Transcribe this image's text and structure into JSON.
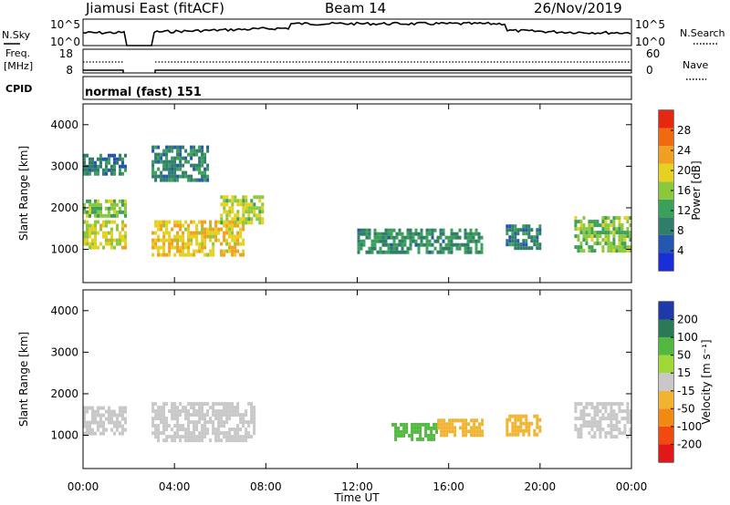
{
  "header": {
    "radar_title": "Jiamusi East (fitACF)",
    "beam": "Beam 14",
    "date": "26/Nov/2019"
  },
  "panels": {
    "nsky_label": "N.Sky",
    "nsky_ticks": [
      "10^5",
      "10^0"
    ],
    "nsearch_label": "N.Search",
    "nsearch_ticks": [
      "10^5",
      "10^0"
    ],
    "freq_label": "Freq.",
    "freq_unit": "[MHz]",
    "freq_ticks": [
      "18",
      "8"
    ],
    "nave_label": "Nave",
    "nave_ticks": [
      "60",
      "0"
    ],
    "cpid_label": "CPID",
    "cpid_value": "normal (fast) 151"
  },
  "colors": {
    "power": [
      "#1a2ed8",
      "#2557b0",
      "#2f7d6a",
      "#3aa05a",
      "#8cc83c",
      "#e6d020",
      "#f0a020",
      "#f06a10",
      "#e52810"
    ],
    "velocity": [
      "#e01818",
      "#f04a10",
      "#f08a10",
      "#f0b430",
      "#c8c8c8",
      "#9fd838",
      "#52b840",
      "#2a7a58",
      "#1e3aa8"
    ]
  },
  "chart_data": [
    {
      "type": "heatmap",
      "name": "power",
      "ylabel": "Slant Range [km]",
      "ylim": [
        200,
        4500
      ],
      "yticks": [
        "4000",
        "3000",
        "2000",
        "1000"
      ],
      "xlim_hours": [
        0,
        24
      ],
      "xticks": [
        "00:00",
        "04:00",
        "08:00",
        "12:00",
        "16:00",
        "20:00",
        "00:00"
      ],
      "colorbar_label": "Power [dB]",
      "colorbar_ticks": [
        "28",
        "24",
        "20",
        "16",
        "12",
        "8",
        "4"
      ],
      "colorbar_range": [
        0,
        30
      ],
      "regions": [
        {
          "t": [
            0.0,
            1.8
          ],
          "r": [
            1000,
            1700
          ],
          "v": 18
        },
        {
          "t": [
            0.0,
            1.8
          ],
          "r": [
            1800,
            2200
          ],
          "v": 14
        },
        {
          "t": [
            0.0,
            1.8
          ],
          "r": [
            2800,
            3300
          ],
          "v": 8
        },
        {
          "t": [
            3.0,
            7.0
          ],
          "r": [
            900,
            1700
          ],
          "v": 20
        },
        {
          "t": [
            3.0,
            5.5
          ],
          "r": [
            2700,
            3500
          ],
          "v": 8
        },
        {
          "t": [
            6.0,
            7.8
          ],
          "r": [
            1600,
            2300
          ],
          "v": 16
        },
        {
          "t": [
            12.0,
            17.5
          ],
          "r": [
            900,
            1500
          ],
          "v": 9
        },
        {
          "t": [
            18.5,
            20.0
          ],
          "r": [
            1000,
            1600
          ],
          "v": 8
        },
        {
          "t": [
            21.5,
            24.0
          ],
          "r": [
            1000,
            1800
          ],
          "v": 14
        }
      ]
    },
    {
      "type": "heatmap",
      "name": "velocity",
      "ylabel": "Slant Range [km]",
      "ylim": [
        200,
        4500
      ],
      "yticks": [
        "4000",
        "3000",
        "2000",
        "1000"
      ],
      "xlim_hours": [
        0,
        24
      ],
      "xticks": [
        "00:00",
        "04:00",
        "08:00",
        "12:00",
        "16:00",
        "20:00",
        "00:00"
      ],
      "xlabel": "Time UT",
      "colorbar_label": "Velocity [m s⁻¹]",
      "colorbar_ticks": [
        "200",
        "100",
        "50",
        "15",
        "-15",
        "-50",
        "-100",
        "-200"
      ],
      "regions": [
        {
          "t": [
            0.0,
            1.8
          ],
          "r": [
            1000,
            1700
          ],
          "v": 0
        },
        {
          "t": [
            3.0,
            7.5
          ],
          "r": [
            900,
            1800
          ],
          "v": 0
        },
        {
          "t": [
            13.5,
            15.5
          ],
          "r": [
            900,
            1300
          ],
          "v": 60
        },
        {
          "t": [
            15.5,
            17.5
          ],
          "r": [
            1000,
            1400
          ],
          "v": -40
        },
        {
          "t": [
            18.5,
            20.0
          ],
          "r": [
            1000,
            1500
          ],
          "v": -30
        },
        {
          "t": [
            21.5,
            24.0
          ],
          "r": [
            1000,
            1800
          ],
          "v": 0
        }
      ]
    }
  ]
}
